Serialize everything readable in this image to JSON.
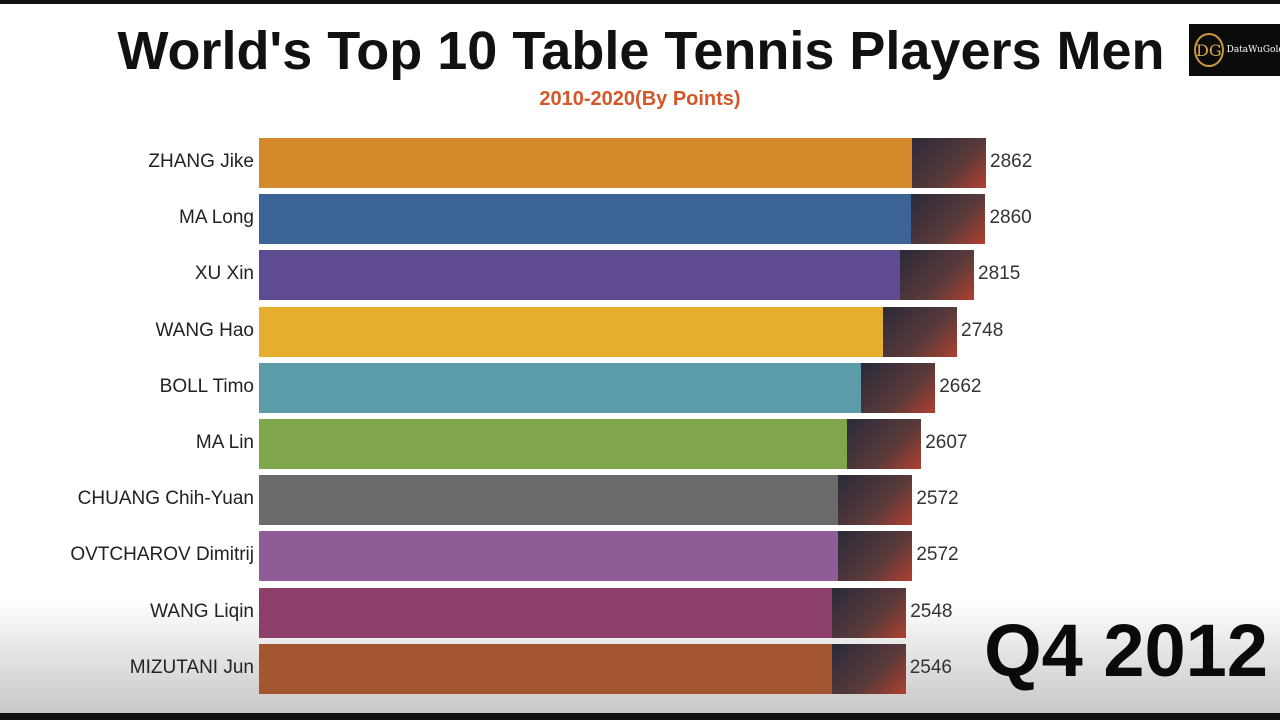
{
  "chart_data": {
    "type": "bar",
    "orientation": "horizontal",
    "title": "World's Top 10 Table Tennis Players Men",
    "subtitle": "2010-2020(By Points)",
    "period": "Q4 2012",
    "categories": [
      "ZHANG Jike",
      "MA Long",
      "XU Xin",
      "WANG Hao",
      "BOLL Timo",
      "MA Lin",
      "CHUANG Chih-Yuan",
      "OVTCHAROV Dimitrij",
      "WANG Liqin",
      "MIZUTANI Jun"
    ],
    "values": [
      2862,
      2860,
      2815,
      2748,
      2662,
      2607,
      2572,
      2572,
      2548,
      2546
    ],
    "colors": [
      "#d4892a",
      "#3c6396",
      "#5e4b92",
      "#e5ae2e",
      "#5b9ca8",
      "#7fa64a",
      "#6a6a6a",
      "#8e5c96",
      "#8b3f6a",
      "#a3562f"
    ],
    "xlim": [
      0,
      2862
    ],
    "grid": false,
    "legend": "none"
  },
  "logo": {
    "initials": "DG",
    "text": "DataWuGold"
  }
}
